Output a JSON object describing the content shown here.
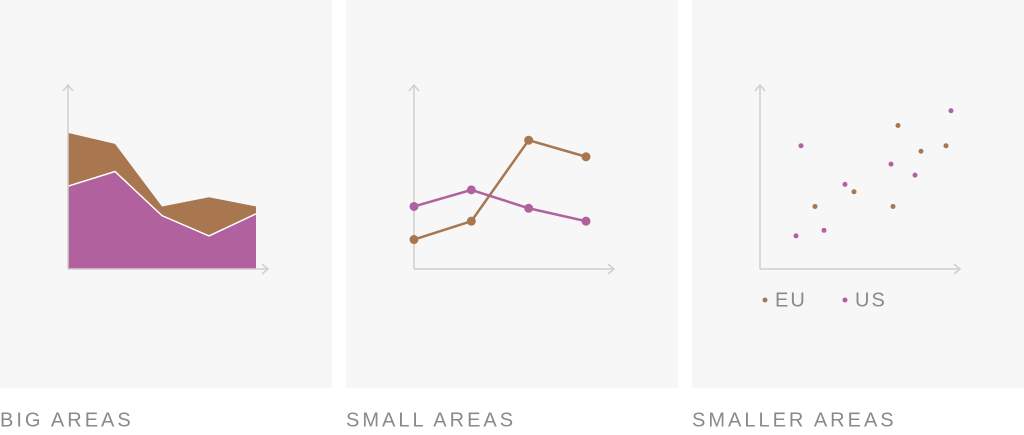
{
  "chart_data": [
    {
      "type": "area",
      "title": "BIG AREAS",
      "stacked": true,
      "categories": [
        null,
        null,
        null,
        null,
        null
      ],
      "series": [
        {
          "color": "#b0619e",
          "values": [
            45,
            53,
            29,
            18,
            30
          ]
        },
        {
          "color": "#a8774f",
          "values": [
            29,
            15,
            5,
            21,
            4
          ]
        }
      ],
      "ylim": [
        0,
        100
      ]
    },
    {
      "type": "line",
      "title": "SMALL AREAS",
      "categories": [
        null,
        null,
        null,
        null
      ],
      "series": [
        {
          "color": "#a8774f",
          "values": [
            16,
            26,
            70,
            61
          ]
        },
        {
          "color": "#b0619e",
          "values": [
            34,
            43,
            33,
            26
          ]
        }
      ],
      "ylim": [
        0,
        100
      ]
    },
    {
      "type": "scatter",
      "title": "SMALLER AREAS",
      "legend": "bottom",
      "series": [
        {
          "name": "EU",
          "color": "#a8774f",
          "x": [
            27.5,
            47,
            66.5,
            69,
            80.5,
            93
          ],
          "values": [
            34,
            42,
            34,
            78,
            64,
            67
          ]
        },
        {
          "name": "US",
          "color": "#b0619e",
          "x": [
            18,
            20.5,
            32,
            42.5,
            65.5,
            77.5,
            95.5
          ],
          "values": [
            18,
            67,
            21,
            46,
            57,
            51,
            86
          ]
        }
      ],
      "xlim": [
        0,
        100
      ],
      "ylim": [
        0,
        100
      ]
    }
  ]
}
